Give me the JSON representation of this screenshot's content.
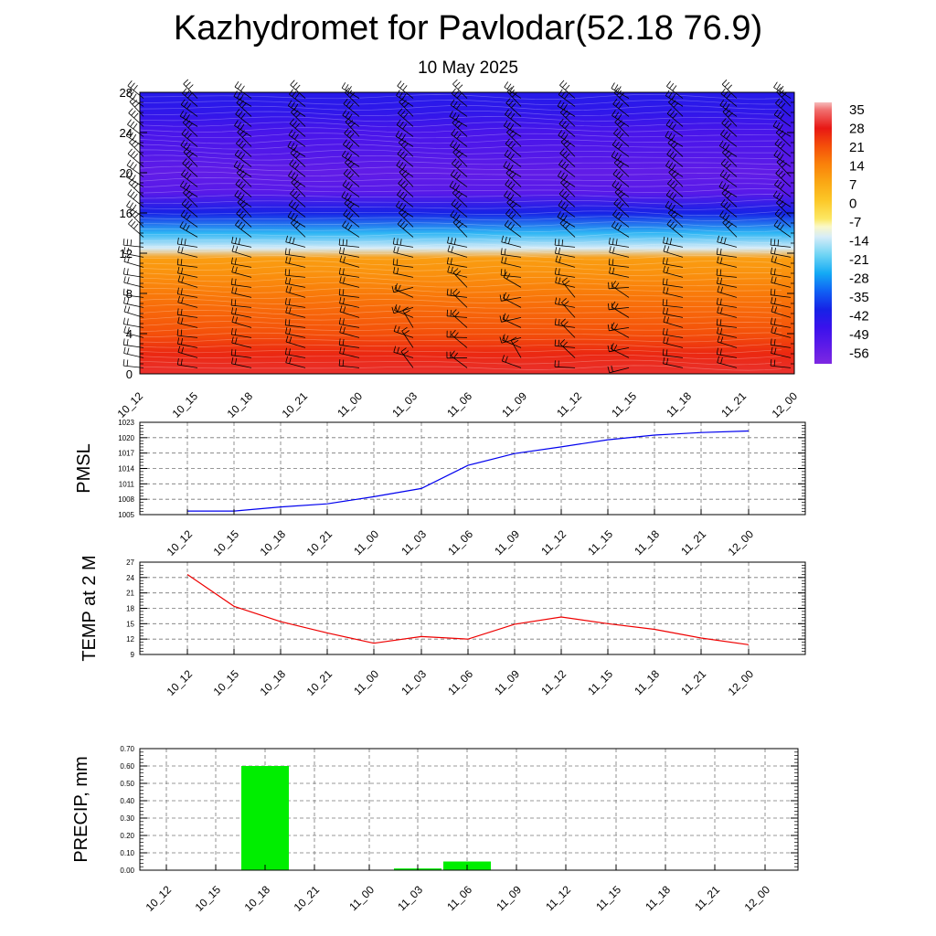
{
  "header": {
    "title": "Kazhydromet for Pavlodar(52.18 76.9)",
    "subtitle": "10 May 2025"
  },
  "time_labels": [
    "10_12",
    "10_15",
    "10_18",
    "10_21",
    "11_00",
    "11_03",
    "11_06",
    "11_09",
    "11_12",
    "11_15",
    "11_18",
    "11_21",
    "12_00"
  ],
  "chart_data": [
    {
      "type": "heatmap",
      "title": "",
      "ylim": [
        0,
        28
      ],
      "y_ticks": [
        "0",
        "4",
        "8",
        "12",
        "16",
        "20",
        "24",
        "28"
      ],
      "x": [
        "10_12",
        "10_15",
        "10_18",
        "10_21",
        "11_00",
        "11_03",
        "11_06",
        "11_09",
        "11_12",
        "11_15",
        "11_18",
        "11_21",
        "12_00"
      ],
      "colorbar_labels": [
        "35",
        "28",
        "21",
        "14",
        "7",
        "0",
        "-7",
        "-14",
        "-21",
        "-28",
        "-35",
        "-42",
        "-49",
        "-56"
      ],
      "colorbar_range": [
        -63,
        38
      ],
      "temperature_profile": {
        "levels": [
          0,
          2,
          4,
          6,
          8,
          10,
          11.5,
          12.5,
          14,
          16,
          18,
          20,
          22,
          24,
          26,
          28
        ],
        "values": [
          30,
          26,
          21,
          18,
          15,
          11,
          9,
          -14,
          -26,
          -42,
          -55,
          -57,
          -54,
          -52,
          -47,
          -45
        ]
      },
      "overlay": "wind barbs",
      "grid": false
    },
    {
      "type": "line",
      "ylabel": "PMSL",
      "ylim": [
        1005,
        1023
      ],
      "y_ticks": [
        "1005",
        "1008",
        "1011",
        "1014",
        "1017",
        "1020",
        "1023"
      ],
      "x": [
        "10_12",
        "10_15",
        "10_18",
        "10_21",
        "11_00",
        "11_03",
        "11_06",
        "11_09",
        "11_12",
        "11_15",
        "11_18",
        "11_21",
        "12_00"
      ],
      "series": [
        {
          "values": [
            1005.7,
            1005.7,
            1006.5,
            1007.1,
            1008.5,
            1010.1,
            1014.6,
            1016.9,
            1018.2,
            1019.6,
            1020.5,
            1021.0,
            1021.3
          ]
        }
      ],
      "color": "#0000ee",
      "grid": true
    },
    {
      "type": "line",
      "ylabel": "TEMP at 2 M",
      "ylim": [
        9,
        27
      ],
      "y_ticks": [
        "9",
        "12",
        "15",
        "18",
        "21",
        "24",
        "27"
      ],
      "x": [
        "10_12",
        "10_15",
        "10_18",
        "10_21",
        "11_00",
        "11_03",
        "11_06",
        "11_09",
        "11_12",
        "11_15",
        "11_18",
        "11_21",
        "12_00"
      ],
      "series": [
        {
          "values": [
            24.6,
            18.4,
            15.4,
            13.2,
            11.2,
            12.5,
            12.0,
            14.9,
            16.3,
            15.0,
            13.9,
            12.2,
            10.9
          ]
        }
      ],
      "color": "#ee0000",
      "grid": true
    },
    {
      "type": "bar",
      "ylabel": "PRECIP, mm",
      "ylim": [
        0,
        0.7
      ],
      "y_ticks": [
        "0.00",
        "0.10",
        "0.20",
        "0.30",
        "0.40",
        "0.50",
        "0.60",
        "0.70"
      ],
      "categories": [
        "10_12",
        "10_15",
        "10_18",
        "10_21",
        "11_00",
        "11_03",
        "11_06",
        "11_09",
        "11_12",
        "11_15",
        "11_18",
        "11_21",
        "12_00"
      ],
      "values": [
        0,
        0,
        0.6,
        0,
        0,
        0.01,
        0.05,
        0,
        0,
        0,
        0,
        0,
        0
      ],
      "color": "#00ee00",
      "grid": true
    }
  ]
}
